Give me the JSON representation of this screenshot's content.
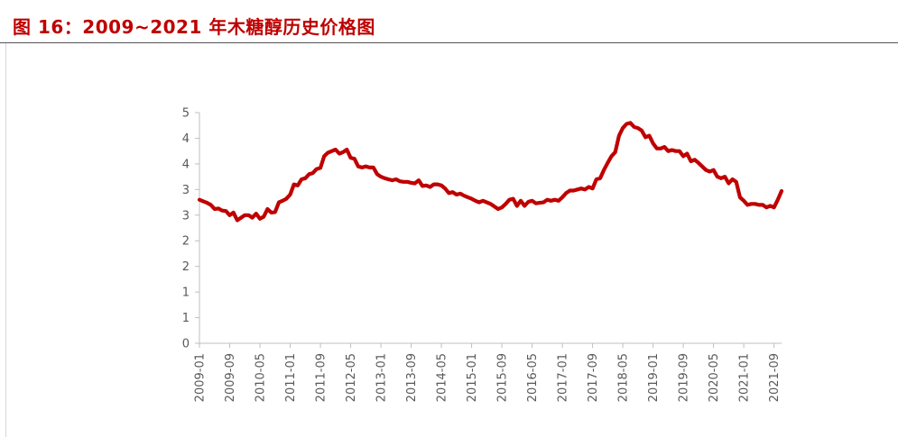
{
  "figure_title": "图 16：2009~2021 年木糖醇历史价格图",
  "colors": {
    "title": "#c00000",
    "series": "#c00000",
    "axis": "#bfbfbf",
    "tick_text": "#595959"
  },
  "chart_data": {
    "type": "line",
    "title": "",
    "xlabel": "",
    "ylabel": "",
    "grid": false,
    "legend": "none",
    "y_tick_labels": [
      "0",
      "1",
      "1",
      "2",
      "2",
      "3",
      "3",
      "4",
      "4",
      "5"
    ],
    "y_ticks": [
      0,
      0.5,
      1,
      1.5,
      2,
      2.5,
      3,
      3.5,
      4,
      4.5
    ],
    "ylim": [
      0,
      4.5
    ],
    "x_tick_labels": [
      "2009-01",
      "2009-09",
      "2010-05",
      "2011-01",
      "2011-09",
      "2012-05",
      "2013-01",
      "2013-09",
      "2014-05",
      "2015-01",
      "2015-09",
      "2016-05",
      "2017-01",
      "2017-09",
      "2018-05",
      "2019-01",
      "2019-09",
      "2020-05",
      "2021-01",
      "2021-09"
    ],
    "x_range": [
      "2009-01",
      "2021-11"
    ],
    "series": [
      {
        "name": "",
        "points": [
          [
            "2009-01",
            2.8
          ],
          [
            "2009-02",
            2.77
          ],
          [
            "2009-03",
            2.74
          ],
          [
            "2009-04",
            2.7
          ],
          [
            "2009-05",
            2.62
          ],
          [
            "2009-06",
            2.63
          ],
          [
            "2009-07",
            2.59
          ],
          [
            "2009-08",
            2.58
          ],
          [
            "2009-09",
            2.5
          ],
          [
            "2009-10",
            2.55
          ],
          [
            "2009-11",
            2.4
          ],
          [
            "2009-12",
            2.45
          ],
          [
            "2010-01",
            2.5
          ],
          [
            "2010-02",
            2.5
          ],
          [
            "2010-03",
            2.45
          ],
          [
            "2010-04",
            2.53
          ],
          [
            "2010-05",
            2.43
          ],
          [
            "2010-06",
            2.47
          ],
          [
            "2010-07",
            2.62
          ],
          [
            "2010-08",
            2.55
          ],
          [
            "2010-09",
            2.56
          ],
          [
            "2010-10",
            2.75
          ],
          [
            "2010-11",
            2.78
          ],
          [
            "2010-12",
            2.82
          ],
          [
            "2011-01",
            2.9
          ],
          [
            "2011-02",
            3.1
          ],
          [
            "2011-03",
            3.08
          ],
          [
            "2011-04",
            3.2
          ],
          [
            "2011-05",
            3.22
          ],
          [
            "2011-06",
            3.3
          ],
          [
            "2011-07",
            3.32
          ],
          [
            "2011-08",
            3.4
          ],
          [
            "2011-09",
            3.42
          ],
          [
            "2011-10",
            3.65
          ],
          [
            "2011-11",
            3.72
          ],
          [
            "2011-12",
            3.75
          ],
          [
            "2012-01",
            3.78
          ],
          [
            "2012-02",
            3.7
          ],
          [
            "2012-03",
            3.73
          ],
          [
            "2012-04",
            3.78
          ],
          [
            "2012-05",
            3.62
          ],
          [
            "2012-06",
            3.6
          ],
          [
            "2012-07",
            3.45
          ],
          [
            "2012-08",
            3.43
          ],
          [
            "2012-09",
            3.45
          ],
          [
            "2012-10",
            3.43
          ],
          [
            "2012-11",
            3.43
          ],
          [
            "2012-12",
            3.3
          ],
          [
            "2013-01",
            3.25
          ],
          [
            "2013-02",
            3.22
          ],
          [
            "2013-03",
            3.2
          ],
          [
            "2013-04",
            3.18
          ],
          [
            "2013-05",
            3.2
          ],
          [
            "2013-06",
            3.16
          ],
          [
            "2013-07",
            3.15
          ],
          [
            "2013-08",
            3.15
          ],
          [
            "2013-09",
            3.13
          ],
          [
            "2013-10",
            3.12
          ],
          [
            "2013-11",
            3.18
          ],
          [
            "2013-12",
            3.07
          ],
          [
            "2014-01",
            3.08
          ],
          [
            "2014-02",
            3.05
          ],
          [
            "2014-03",
            3.1
          ],
          [
            "2014-04",
            3.1
          ],
          [
            "2014-05",
            3.08
          ],
          [
            "2014-06",
            3.02
          ],
          [
            "2014-07",
            2.93
          ],
          [
            "2014-08",
            2.95
          ],
          [
            "2014-09",
            2.9
          ],
          [
            "2014-10",
            2.92
          ],
          [
            "2014-11",
            2.88
          ],
          [
            "2014-12",
            2.85
          ],
          [
            "2015-01",
            2.82
          ],
          [
            "2015-02",
            2.78
          ],
          [
            "2015-03",
            2.75
          ],
          [
            "2015-04",
            2.78
          ],
          [
            "2015-05",
            2.75
          ],
          [
            "2015-06",
            2.72
          ],
          [
            "2015-07",
            2.67
          ],
          [
            "2015-08",
            2.62
          ],
          [
            "2015-09",
            2.65
          ],
          [
            "2015-10",
            2.72
          ],
          [
            "2015-11",
            2.8
          ],
          [
            "2015-12",
            2.82
          ],
          [
            "2016-01",
            2.68
          ],
          [
            "2016-02",
            2.78
          ],
          [
            "2016-03",
            2.68
          ],
          [
            "2016-04",
            2.76
          ],
          [
            "2016-05",
            2.78
          ],
          [
            "2016-06",
            2.73
          ],
          [
            "2016-07",
            2.74
          ],
          [
            "2016-08",
            2.75
          ],
          [
            "2016-09",
            2.8
          ],
          [
            "2016-10",
            2.78
          ],
          [
            "2016-11",
            2.8
          ],
          [
            "2016-12",
            2.78
          ],
          [
            "2017-01",
            2.85
          ],
          [
            "2017-02",
            2.93
          ],
          [
            "2017-03",
            2.98
          ],
          [
            "2017-04",
            2.98
          ],
          [
            "2017-05",
            3.0
          ],
          [
            "2017-06",
            3.02
          ],
          [
            "2017-07",
            3.0
          ],
          [
            "2017-08",
            3.05
          ],
          [
            "2017-09",
            3.02
          ],
          [
            "2017-10",
            3.2
          ],
          [
            "2017-11",
            3.22
          ],
          [
            "2017-12",
            3.38
          ],
          [
            "2018-01",
            3.52
          ],
          [
            "2018-02",
            3.65
          ],
          [
            "2018-03",
            3.73
          ],
          [
            "2018-04",
            4.05
          ],
          [
            "2018-05",
            4.2
          ],
          [
            "2018-06",
            4.28
          ],
          [
            "2018-07",
            4.3
          ],
          [
            "2018-08",
            4.22
          ],
          [
            "2018-09",
            4.2
          ],
          [
            "2018-10",
            4.15
          ],
          [
            "2018-11",
            4.02
          ],
          [
            "2018-12",
            4.05
          ],
          [
            "2019-01",
            3.9
          ],
          [
            "2019-02",
            3.8
          ],
          [
            "2019-03",
            3.8
          ],
          [
            "2019-04",
            3.83
          ],
          [
            "2019-05",
            3.75
          ],
          [
            "2019-06",
            3.77
          ],
          [
            "2019-07",
            3.75
          ],
          [
            "2019-08",
            3.75
          ],
          [
            "2019-09",
            3.65
          ],
          [
            "2019-10",
            3.7
          ],
          [
            "2019-11",
            3.55
          ],
          [
            "2019-12",
            3.58
          ],
          [
            "2020-01",
            3.52
          ],
          [
            "2020-02",
            3.45
          ],
          [
            "2020-03",
            3.38
          ],
          [
            "2020-04",
            3.35
          ],
          [
            "2020-05",
            3.38
          ],
          [
            "2020-06",
            3.25
          ],
          [
            "2020-07",
            3.22
          ],
          [
            "2020-08",
            3.25
          ],
          [
            "2020-09",
            3.12
          ],
          [
            "2020-10",
            3.2
          ],
          [
            "2020-11",
            3.15
          ],
          [
            "2020-12",
            2.85
          ],
          [
            "2021-01",
            2.78
          ],
          [
            "2021-02",
            2.7
          ],
          [
            "2021-03",
            2.72
          ],
          [
            "2021-04",
            2.72
          ],
          [
            "2021-05",
            2.7
          ],
          [
            "2021-06",
            2.7
          ],
          [
            "2021-07",
            2.65
          ],
          [
            "2021-08",
            2.68
          ],
          [
            "2021-09",
            2.65
          ],
          [
            "2021-10",
            2.8
          ],
          [
            "2021-11",
            2.97
          ]
        ]
      }
    ]
  }
}
